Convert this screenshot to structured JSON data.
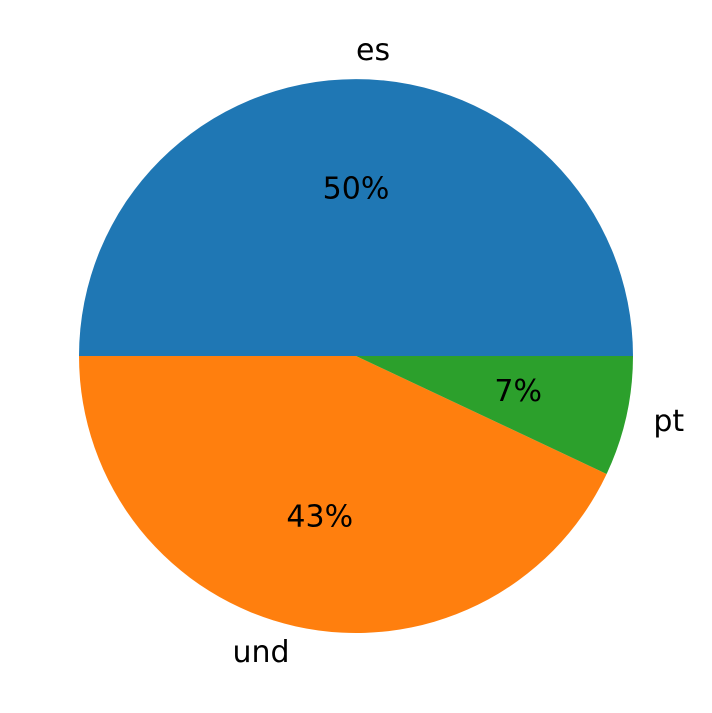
{
  "chart_data": {
    "type": "pie",
    "categories": [
      "es",
      "und",
      "pt"
    ],
    "values": [
      50,
      43,
      7
    ],
    "value_labels": [
      "50%",
      "43%",
      "7%"
    ],
    "colors": [
      "#1f77b4",
      "#ff7f0e",
      "#2ca02c"
    ]
  }
}
